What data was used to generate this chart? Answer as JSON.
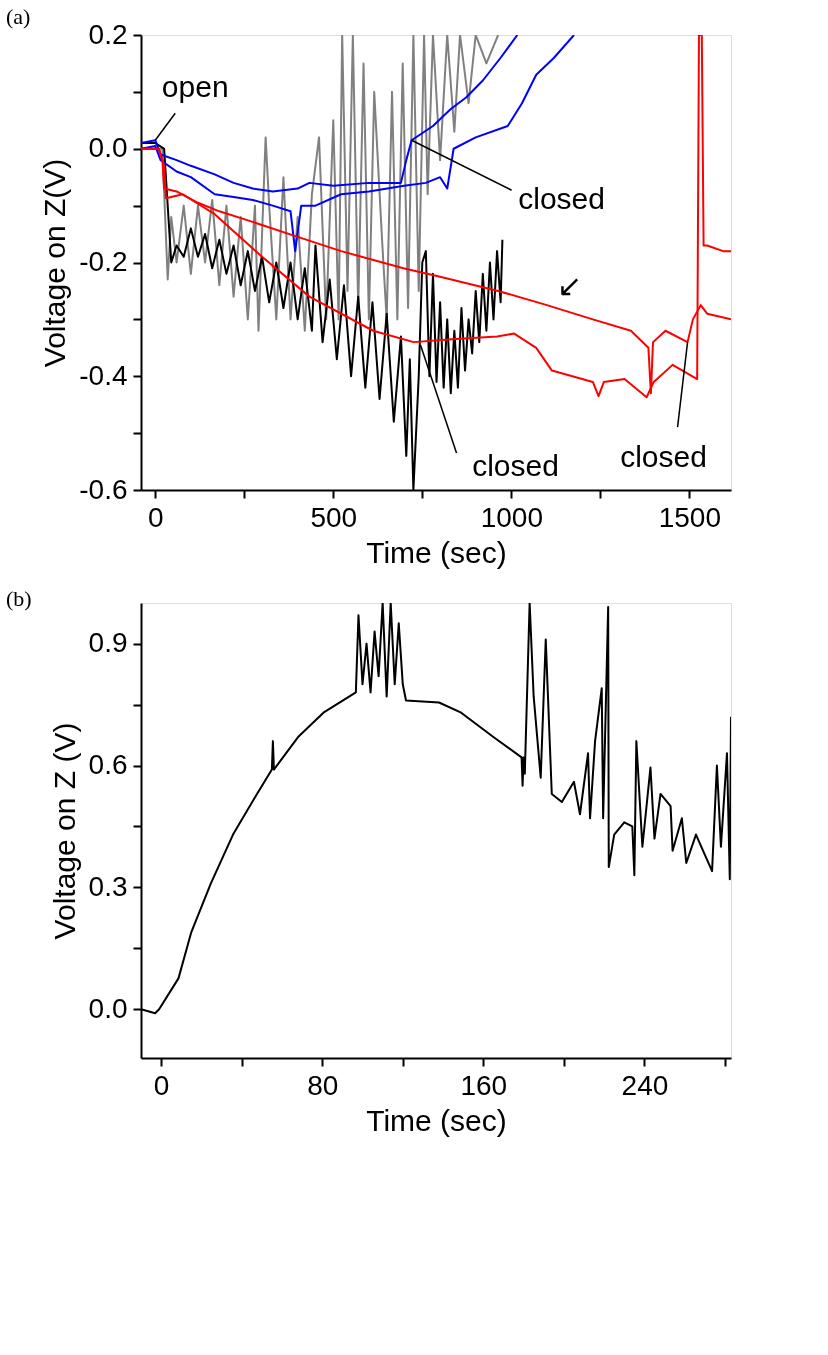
{
  "chart_data": [
    {
      "type": "line",
      "title": "(a)",
      "xlabel": "Time (sec)",
      "ylabel": "Voltage on Z(V)",
      "xlim": [
        -40,
        1617
      ],
      "ylim": [
        -0.6,
        0.2
      ],
      "xticks": [
        0,
        {
          "value": 250,
          "label": null
        },
        500,
        {
          "value": 750,
          "label": null
        },
        1000,
        {
          "value": 1250,
          "label": null
        },
        1500
      ],
      "yticks": [
        -0.6,
        {
          "value": -0.5,
          "label": null
        },
        -0.4,
        {
          "value": -0.3,
          "label": null
        },
        -0.2,
        {
          "value": -0.1,
          "label": null
        },
        {
          "value": 0,
          "label": "0.0"
        },
        {
          "value": 0.1,
          "label": null
        },
        0.2
      ],
      "series": [
        {
          "color": "#808080",
          "x": [
            -40,
            20,
            30,
            35,
            45,
            60,
            80,
            100,
            120,
            140,
            160,
            180,
            200,
            220,
            240,
            260,
            280,
            290,
            310,
            320,
            340,
            360,
            380,
            400,
            420,
            440,
            460,
            480,
            500,
            515,
            525,
            540,
            555,
            570,
            585,
            600,
            615,
            637,
            650,
            665,
            680,
            695,
            710,
            725,
            740,
            755,
            765,
            780,
            800,
            820,
            840,
            856,
            880,
            900,
            930,
            963
          ],
          "values": [
            0.0,
            0.0,
            null,
            -0.23,
            -0.12,
            -0.2,
            -0.1,
            -0.22,
            -0.1,
            -0.2,
            -0.09,
            -0.24,
            -0.1,
            -0.26,
            -0.12,
            -0.3,
            -0.1,
            -0.32,
            0.02,
            -0.1,
            -0.3,
            -0.05,
            -0.3,
            -0.12,
            -0.32,
            -0.08,
            0.02,
            -0.3,
            0.05,
            -0.3,
            0.2,
            -0.25,
            0.2,
            -0.28,
            0.15,
            -0.3,
            0.1,
            -0.16,
            -0.3,
            0.1,
            -0.3,
            0.15,
            -0.28,
            0.2,
            -0.25,
            0.2,
            -0.08,
            0.2,
            -0.02,
            0.2,
            0.03,
            0.2,
            0.08,
            0.2,
            0.15,
            0.2
          ]
        },
        {
          "color": "#000000",
          "x": [
            -40,
            0,
            25,
            35,
            45,
            60,
            80,
            100,
            120,
            140,
            160,
            180,
            200,
            220,
            240,
            260,
            280,
            300,
            320,
            340,
            360,
            380,
            400,
            420,
            440,
            450,
            470,
            490,
            510,
            530,
            550,
            570,
            590,
            610,
            630,
            650,
            670,
            690,
            705,
            715,
            725,
            740,
            750,
            760,
            770,
            780,
            790,
            800,
            810,
            820,
            830,
            840,
            850,
            860,
            870,
            880,
            890,
            900,
            910,
            920,
            930,
            940,
            950,
            960,
            970,
            975
          ],
          "values": [
            0.01,
            0.01,
            0.0,
            -0.1,
            -0.2,
            -0.17,
            -0.19,
            -0.14,
            -0.19,
            -0.15,
            -0.21,
            -0.16,
            -0.22,
            -0.17,
            -0.24,
            -0.18,
            -0.25,
            -0.19,
            -0.27,
            -0.2,
            -0.28,
            -0.2,
            -0.3,
            -0.21,
            -0.32,
            -0.17,
            -0.34,
            -0.23,
            -0.37,
            -0.24,
            -0.4,
            -0.26,
            -0.42,
            -0.27,
            -0.44,
            -0.29,
            -0.48,
            -0.33,
            -0.54,
            -0.37,
            -0.6,
            -0.4,
            -0.2,
            -0.18,
            -0.4,
            -0.22,
            -0.41,
            -0.27,
            -0.42,
            -0.3,
            -0.43,
            -0.32,
            -0.42,
            -0.28,
            -0.39,
            -0.3,
            -0.36,
            -0.25,
            -0.34,
            -0.22,
            -0.32,
            -0.2,
            -0.3,
            -0.18,
            -0.27,
            -0.16
          ]
        },
        {
          "color": "#0000ff",
          "x": [
            -40,
            0,
            15,
            60,
            100,
            167,
            220,
            274,
            330,
            400,
            433,
            500,
            600,
            690,
            705,
            720,
            780,
            830,
            873,
            920,
            970,
            1017
          ],
          "values": [
            0.01,
            0.015,
            -0.01,
            -0.02,
            -0.03,
            -0.045,
            -0.06,
            -0.07,
            -0.075,
            -0.07,
            -0.06,
            -0.065,
            -0.06,
            -0.06,
            -0.02,
            0.015,
            0.04,
            0.07,
            0.09,
            0.12,
            0.16,
            0.2
          ]
        },
        {
          "color": "#0000ff",
          "x": [
            -40,
            0,
            15,
            60,
            100,
            167,
            220,
            274,
            330,
            380,
            393,
            410,
            450,
            522,
            600,
            699,
            760,
            800,
            820,
            838,
            900,
            990,
            1030,
            1070,
            1120,
            1176
          ],
          "values": [
            0.0,
            0.005,
            -0.02,
            -0.04,
            -0.05,
            -0.08,
            -0.085,
            -0.09,
            -0.1,
            -0.11,
            -0.18,
            -0.1,
            -0.1,
            -0.08,
            -0.075,
            -0.065,
            -0.06,
            -0.05,
            -0.07,
            0.0,
            0.02,
            0.04,
            0.08,
            0.13,
            0.16,
            0.2
          ]
        },
        {
          "color": "#ff0000",
          "x": [
            -40,
            10,
            20,
            25,
            60,
            120,
            180,
            256,
            400,
            522,
            697,
            800,
            963,
            1100,
            1229,
            1336,
            1385,
            1392,
            1398,
            1433,
            1495,
            1510,
            1532,
            1550,
            1617
          ],
          "values": [
            0.0,
            0.0,
            -0.02,
            -0.07,
            -0.075,
            -0.095,
            -0.11,
            -0.125,
            -0.155,
            -0.18,
            -0.21,
            -0.225,
            -0.25,
            -0.275,
            -0.3,
            -0.32,
            -0.35,
            -0.43,
            -0.34,
            -0.32,
            -0.34,
            -0.3,
            -0.275,
            -0.29,
            -0.3
          ]
        },
        {
          "color": "#ff0000",
          "x": [
            -40,
            10,
            25,
            30,
            77,
            167,
            300,
            433,
            612,
            726,
            833,
            960,
            1008,
            1070,
            1114,
            1229,
            1245,
            1260,
            1318,
            1380,
            1400,
            1453,
            1522,
            1527,
            1535,
            1540,
            1550,
            1595,
            1617
          ],
          "values": [
            0.0,
            0.0,
            -0.03,
            -0.087,
            -0.08,
            -0.115,
            -0.19,
            -0.26,
            -0.32,
            -0.34,
            -0.335,
            -0.33,
            -0.325,
            -0.35,
            -0.39,
            -0.41,
            -0.435,
            -0.41,
            -0.405,
            -0.437,
            -0.41,
            -0.38,
            -0.405,
            0.2,
            0.2,
            -0.17,
            -0.17,
            -0.18,
            -0.18
          ]
        }
      ],
      "annotations": [
        {
          "text": "open",
          "x": 0,
          "y": 0.015
        },
        {
          "text": "closed",
          "x": 720,
          "y": 0.015
        },
        {
          "text": "closed",
          "x": 745,
          "y": -0.345
        },
        {
          "text": "closed",
          "x": 1495,
          "y": -0.34
        },
        {
          "text": "↙",
          "x": 1112,
          "y": -0.28
        }
      ]
    },
    {
      "type": "line",
      "title": "(b)",
      "xlabel": "Time (sec)",
      "ylabel": "Voltage on Z (V)",
      "xlim": [
        -10,
        283
      ],
      "ylim": [
        -0.12,
        1.0
      ],
      "xticks": [
        0,
        {
          "value": 40,
          "label": null
        },
        80,
        {
          "value": 120,
          "label": null
        },
        160,
        {
          "value": 200,
          "label": null
        },
        240,
        {
          "value": 280,
          "label": null
        }
      ],
      "yticks": [
        {
          "value": 0,
          "label": "0.0"
        },
        {
          "value": 0.15,
          "label": null
        },
        0.3,
        {
          "value": 0.45,
          "label": null
        },
        0.6,
        {
          "value": 0.75,
          "label": null
        },
        0.9
      ],
      "series": [
        {
          "color": "#000000",
          "x": [
            -10,
            -3,
            -1,
            8.6,
            15,
            24.7,
            35.7,
            47,
            55,
            55.5,
            56,
            68,
            80.6,
            96.7,
            98,
            100,
            102,
            104,
            106,
            108,
            110,
            112,
            114,
            116,
            118,
            120,
            121.6,
            138,
            149,
            165,
            179,
            179.5,
            180,
            180.6,
            183,
            185,
            188.5,
            191,
            194,
            199,
            205,
            208,
            212,
            213,
            215.5,
            218.8,
            219.5,
            222,
            222.3,
            225,
            230,
            234,
            235,
            236,
            239,
            243,
            245,
            248,
            253,
            254,
            258.6,
            260.8,
            265.6,
            273.6,
            276,
            278,
            281,
            282.4,
            283
          ],
          "values": [
            0.0,
            -0.01,
            0.0,
            0.076,
            0.19,
            0.31,
            0.43,
            0.525,
            0.59,
            0.66,
            0.59,
            0.67,
            0.73,
            0.78,
            0.97,
            0.8,
            0.9,
            0.78,
            0.93,
            0.82,
            1.0,
            0.77,
            1.0,
            0.8,
            0.95,
            0.8,
            0.76,
            0.755,
            0.73,
            0.67,
            0.62,
            0.55,
            0.62,
            0.58,
            1.0,
            0.77,
            0.57,
            0.91,
            0.53,
            0.51,
            0.56,
            0.48,
            0.63,
            0.47,
            0.66,
            0.79,
            0.47,
            0.99,
            0.35,
            0.43,
            0.46,
            0.45,
            0.33,
            0.66,
            0.4,
            0.595,
            0.42,
            0.53,
            0.5,
            0.39,
            0.47,
            0.36,
            0.43,
            0.34,
            0.6,
            0.4,
            0.63,
            0.32,
            0.72
          ]
        }
      ]
    }
  ]
}
